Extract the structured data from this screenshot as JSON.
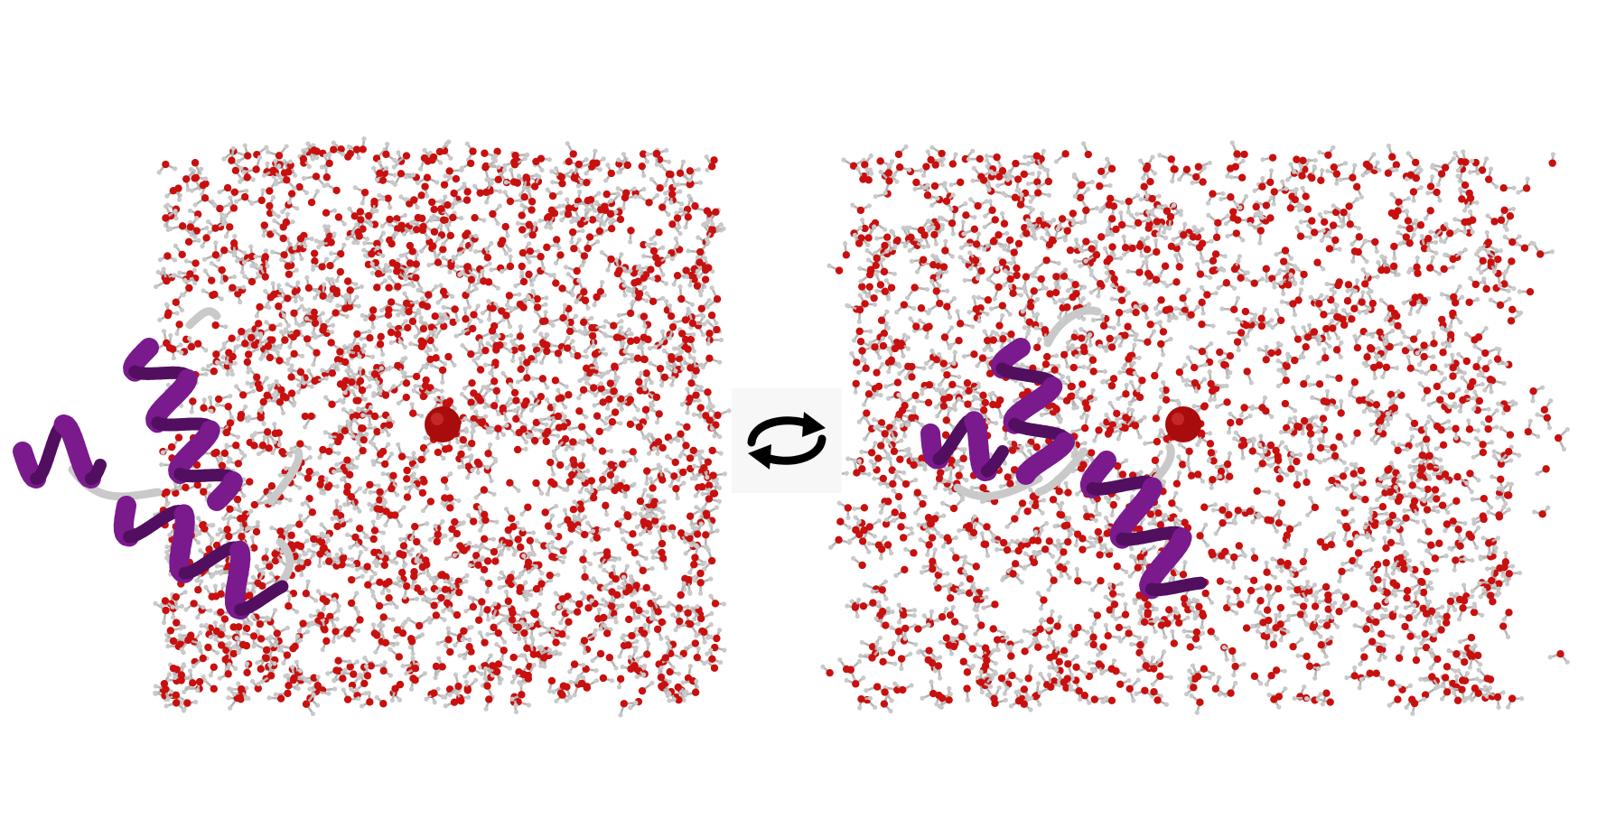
{
  "panels": [
    {
      "name": "left-view"
    },
    {
      "name": "right-view"
    }
  ],
  "water_colors": {
    "oxygen": "#c8100f",
    "hydrogen": "#c9c9c9",
    "bond": "#b5b5b5"
  },
  "protein_colors": {
    "helix": "#7a1a8c",
    "helix_dark": "#520f60",
    "coil": "#c9c9c9"
  },
  "ion_color": "#a80c0c",
  "icon": "rotate-icon"
}
